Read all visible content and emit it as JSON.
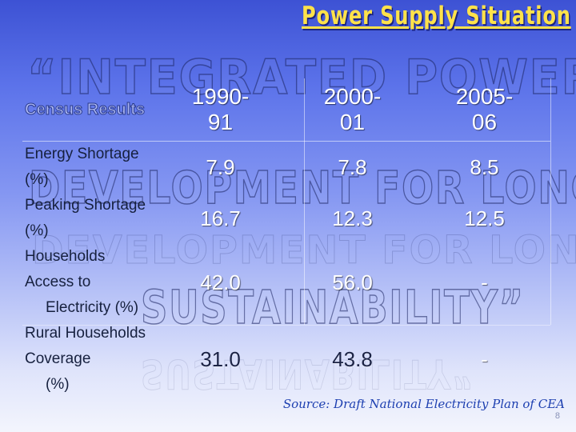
{
  "slide": {
    "title": "Power Supply Situation",
    "watermark": [
      "“INTEGRATED POWER SECTOR",
      "DEVELOPMENT FOR LONG TERM",
      "SUSTAINABILITY”"
    ]
  },
  "table": {
    "header_label": "Census Results",
    "columns": [
      {
        "line1": "1990-",
        "line2": "91"
      },
      {
        "line1": "2000-",
        "line2": "01"
      },
      {
        "line1": "2005-",
        "line2": "06"
      }
    ],
    "rows": [
      {
        "label_line1": "Energy Shortage (%)",
        "label_line2": "",
        "values": [
          "7.9",
          "7.8",
          "8.5"
        ]
      },
      {
        "label_line1": "Peaking Shortage (%)",
        "label_line2": "",
        "values": [
          "16.7",
          "12.3",
          "12.5"
        ]
      },
      {
        "label_line1": "Households Access to",
        "label_line2": "Electricity (%)",
        "values": [
          "42.0",
          "56.0",
          "-"
        ]
      },
      {
        "label_line1": "Rural Households Coverage",
        "label_line2": "(%)",
        "values": [
          "31.0",
          "43.8",
          "-"
        ]
      }
    ]
  },
  "footer": {
    "source": "Source:  Draft National Electricity Plan of CEA",
    "page_number": "8"
  }
}
